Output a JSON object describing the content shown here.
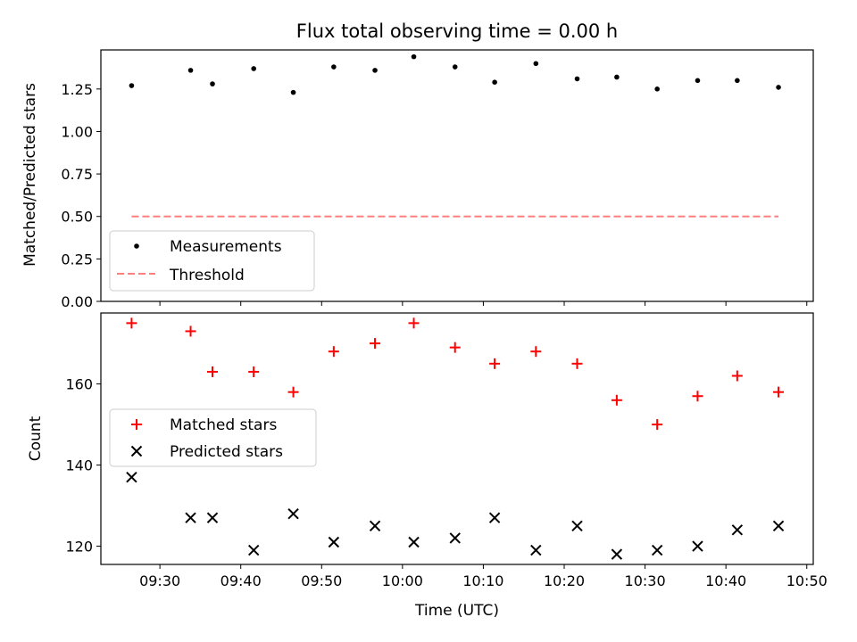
{
  "chart_data": [
    {
      "type": "scatter",
      "title": "Flux total observing time = 0.00 h",
      "ylabel": "Matched/Predicted stars",
      "xlabel": "",
      "ylim": [
        0.0,
        1.48
      ],
      "xlim_minutes": [
        562.7,
        650.8
      ],
      "yticks": [
        0.0,
        0.25,
        0.5,
        0.75,
        1.0,
        1.25
      ],
      "ytick_labels": [
        "0.00",
        "0.25",
        "0.50",
        "0.75",
        "1.00",
        "1.25"
      ],
      "xticks": [
        570,
        580,
        590,
        600,
        610,
        620,
        630,
        640,
        650
      ],
      "series": [
        {
          "name": "Measurements",
          "marker": "dot",
          "color": "#000000",
          "x": [
            566.5,
            573.8,
            576.5,
            581.6,
            586.5,
            591.5,
            596.6,
            601.4,
            606.5,
            611.4,
            616.5,
            621.6,
            626.5,
            631.5,
            636.5,
            641.4,
            646.5
          ],
          "y": [
            1.27,
            1.36,
            1.28,
            1.37,
            1.23,
            1.38,
            1.36,
            1.44,
            1.38,
            1.29,
            1.4,
            1.31,
            1.32,
            1.25,
            1.3,
            1.3,
            1.26
          ]
        },
        {
          "name": "Threshold",
          "marker": "dashed-line",
          "color": "#ff7f7f",
          "x": [
            566.5,
            646.5
          ],
          "y": [
            0.5,
            0.5
          ]
        }
      ],
      "legend_location": "lower-left"
    },
    {
      "type": "scatter",
      "title": "",
      "ylabel": "Count",
      "xlabel": "Time (UTC)",
      "ylim": [
        115.5,
        177.5
      ],
      "xlim_minutes": [
        562.7,
        650.8
      ],
      "yticks": [
        120,
        140,
        160
      ],
      "ytick_labels": [
        "120",
        "140",
        "160"
      ],
      "xticks": [
        570,
        580,
        590,
        600,
        610,
        620,
        630,
        640,
        650
      ],
      "xtick_labels": [
        "09:30",
        "09:40",
        "09:50",
        "10:00",
        "10:10",
        "10:20",
        "10:30",
        "10:40",
        "10:50"
      ],
      "series": [
        {
          "name": "Matched stars",
          "marker": "plus",
          "color": "#ff0000",
          "x": [
            566.5,
            573.8,
            576.5,
            581.6,
            586.5,
            591.5,
            596.6,
            601.4,
            606.5,
            611.4,
            616.5,
            621.6,
            626.5,
            631.5,
            636.5,
            641.4,
            646.5
          ],
          "y": [
            175,
            173,
            163,
            163,
            158,
            168,
            170,
            175,
            169,
            165,
            168,
            165,
            156,
            150,
            157,
            162,
            158
          ]
        },
        {
          "name": "Predicted stars",
          "marker": "x",
          "color": "#000000",
          "x": [
            566.5,
            573.8,
            576.5,
            581.6,
            586.5,
            591.5,
            596.6,
            601.4,
            606.5,
            611.4,
            616.5,
            621.6,
            626.5,
            631.5,
            636.5,
            641.4,
            646.5
          ],
          "y": [
            137,
            127,
            127,
            119,
            128,
            121,
            125,
            121,
            122,
            127,
            119,
            125,
            118,
            119,
            120,
            124,
            125
          ]
        }
      ],
      "legend_location": "center-left"
    }
  ]
}
